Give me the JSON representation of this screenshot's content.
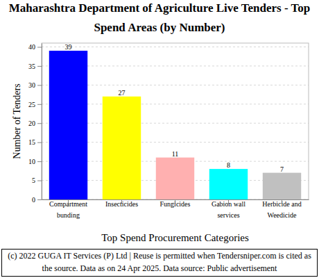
{
  "chart_data": {
    "type": "bar",
    "title": "Maharashtra Department of Agriculture Live Tenders - Top Spend Areas (by Number)",
    "x_label": "Top Spend Procurement Categories",
    "y_label": "Number of Tenders",
    "annotations": [
      "(c) 2022 GUGA IT Services (P) Ltd | Reuse is permitted when Tendersniper.com is cited as the source. Data as on 24 Apr 2025. Data source: Public advertisement"
    ],
    "categories": [
      "Compartment bunding",
      "Insecticides",
      "Fungicides",
      "Gabion wall services",
      "Herbicide and Weedicide"
    ],
    "values": [
      39,
      27,
      11,
      8,
      7
    ],
    "colors": [
      "#0000ff",
      "#ffff00",
      "#ffb0b0",
      "#00ffff",
      "#c0c0c0"
    ],
    "ylim": [
      0,
      41
    ],
    "yticks": [
      0,
      5,
      10,
      15,
      20,
      25,
      30,
      35,
      40
    ],
    "grid": true,
    "data_labels": true
  }
}
